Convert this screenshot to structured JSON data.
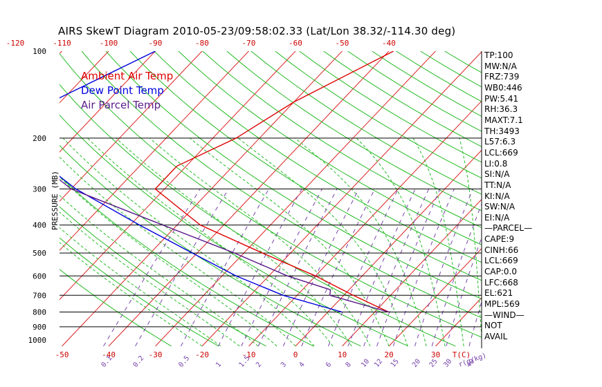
{
  "title": "AIRS SkewT Diagram 2010-05-23/09:58:02.33 (Lat/Lon 38.32/-114.30 deg)",
  "legend": [
    {
      "label": "Ambient Air Temp",
      "color": "#dd0000"
    },
    {
      "label": "Dew Point Temp",
      "color": "#0000dd"
    },
    {
      "label": "Air Parcel Temp",
      "color": "#5a1a8a"
    }
  ],
  "colors": {
    "isotherm": "#dd2222",
    "dry_adiabat": "#22bb22",
    "moist_adiabat": "#22bb22",
    "mixing_ratio": "#7744aa",
    "isobar": "#000000",
    "temp": "#dd0000",
    "dewpoint": "#0000dd",
    "parcel": "#5a1a8a",
    "axis_label": "#cc0000"
  },
  "stats": [
    "TP:100",
    "MW:N/A",
    "FRZ:739",
    "WB0:446",
    "PW:5.41",
    "RH:36.3",
    "MAXT:7.1",
    "TH:3493",
    "L57:6.3",
    "LCL:669",
    "LI:0.8",
    "SI:N/A",
    "TT:N/A",
    "KI:N/A",
    "SW:N/A",
    "EI:N/A",
    "—PARCEL—",
    "CAPE:9",
    "CINH:66",
    "LCL:669",
    "CAP:0.0",
    "LFC:668",
    "EL:621",
    "MPL:569",
    "—WIND—",
    "NOT",
    "AVAIL"
  ],
  "chart_data": {
    "type": "line",
    "title": "AIRS SkewT Diagram 2010-05-23/09:58:02.33 (Lat/Lon 38.32/-114.30 deg)",
    "ylabel": "PRESSURE (MB)",
    "xlabel": "T(C)",
    "mixing_ratio_unit": "r(g/kg)",
    "pressure_ticks": [
      100,
      200,
      300,
      400,
      500,
      600,
      700,
      800,
      900,
      1000
    ],
    "top_temp_ticks": [
      -120,
      -110,
      -100,
      -90,
      -80,
      -70,
      -60,
      -50,
      -40
    ],
    "bottom_temp_ticks": [
      -50,
      -40,
      -30,
      -20,
      -10,
      0,
      10,
      20,
      30
    ],
    "mixing_ratio_ticks": [
      "0.1",
      "0.2",
      "0.5",
      "1",
      "1.5",
      "2",
      "3",
      "4",
      "6",
      "8",
      "10",
      "12",
      "15",
      "20",
      "25",
      "30",
      "40"
    ],
    "ylim": [
      1050,
      100
    ],
    "series": [
      {
        "name": "Ambient Air Temp",
        "points": [
          [
            100,
            -39
          ],
          [
            150,
            -50
          ],
          [
            200,
            -55
          ],
          [
            250,
            -62
          ],
          [
            300,
            -62
          ],
          [
            400,
            -45
          ],
          [
            500,
            -26
          ],
          [
            600,
            -10
          ],
          [
            700,
            2
          ],
          [
            800,
            13
          ]
        ]
      },
      {
        "name": "Dew Point Temp",
        "points": [
          [
            100,
            -90
          ],
          [
            150,
            -102
          ],
          [
            175,
            -102
          ],
          [
            200,
            -99
          ],
          [
            250,
            -90
          ],
          [
            300,
            -79
          ],
          [
            400,
            -58
          ],
          [
            500,
            -41
          ],
          [
            600,
            -27
          ],
          [
            700,
            -13
          ],
          [
            800,
            3
          ]
        ]
      },
      {
        "name": "Air Parcel Temp",
        "points": [
          [
            100,
            -133
          ],
          [
            150,
            -116
          ],
          [
            200,
            -104
          ],
          [
            300,
            -80
          ],
          [
            400,
            -53
          ],
          [
            500,
            -32
          ],
          [
            600,
            -16
          ],
          [
            670,
            -4
          ],
          [
            700,
            -3
          ],
          [
            800,
            13
          ]
        ]
      }
    ]
  }
}
